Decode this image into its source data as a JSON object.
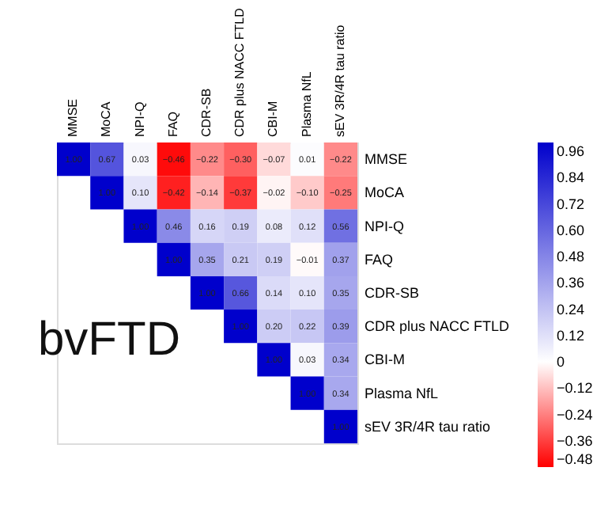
{
  "chart_data": {
    "type": "heatmap",
    "categories": [
      "MMSE",
      "MoCA",
      "NPI-Q",
      "FAQ",
      "CDR-SB",
      "CDR plus NACC FTLD",
      "CBI-M",
      "Plasma NfL",
      "sEV 3R/4R tau ratio"
    ],
    "y_categories": [
      "MMSE",
      "MoCA",
      "NPI-Q",
      "FAQ",
      "CDR-SB",
      "CDR plus NACC FTLD",
      "CBI-M",
      "Plasma NfL",
      "sEV 3R/4R tau ratio"
    ],
    "cells": [
      [
        1.0,
        0.67,
        0.03,
        -0.46,
        -0.22,
        -0.3,
        -0.07,
        0.01,
        -0.22
      ],
      [
        null,
        1.0,
        0.1,
        -0.42,
        -0.14,
        -0.37,
        -0.02,
        -0.1,
        -0.25
      ],
      [
        null,
        null,
        1.0,
        0.46,
        0.16,
        0.19,
        0.08,
        0.12,
        0.56
      ],
      [
        null,
        null,
        null,
        1.0,
        0.35,
        0.21,
        0.19,
        -0.01,
        0.37
      ],
      [
        null,
        null,
        null,
        null,
        1.0,
        0.66,
        0.14,
        0.1,
        0.35
      ],
      [
        null,
        null,
        null,
        null,
        null,
        1.0,
        0.2,
        0.22,
        0.39
      ],
      [
        null,
        null,
        null,
        null,
        null,
        null,
        1.0,
        0.03,
        0.34
      ],
      [
        null,
        null,
        null,
        null,
        null,
        null,
        null,
        1.0,
        0.34
      ],
      [
        null,
        null,
        null,
        null,
        null,
        null,
        null,
        null,
        1.0
      ]
    ],
    "cell_labels": [
      [
        "1.00",
        "0.67",
        "0.03",
        "−0.46",
        "−0.22",
        "−0.30",
        "−0.07",
        "0.01",
        "−0.22"
      ],
      [
        null,
        "1.00",
        "0.10",
        "−0.42",
        "−0.14",
        "−0.37",
        "−0.02",
        "−0.10",
        "−0.25"
      ],
      [
        null,
        null,
        "1.00",
        "0.46",
        "0.16",
        "0.19",
        "0.08",
        "0.12",
        "0.56"
      ],
      [
        null,
        null,
        null,
        "1.00",
        "0.35",
        "0.21",
        "0.19",
        "−0.01",
        "0.37"
      ],
      [
        null,
        null,
        null,
        null,
        "1.00",
        "0.66",
        "0.14",
        "0.10",
        "0.35"
      ],
      [
        null,
        null,
        null,
        null,
        null,
        "1.00",
        "0.20",
        "0.22",
        "0.39"
      ],
      [
        null,
        null,
        null,
        null,
        null,
        null,
        "1.00",
        "0.03",
        "0.34"
      ],
      [
        null,
        null,
        null,
        null,
        null,
        null,
        null,
        "1.00",
        "0.34"
      ],
      [
        null,
        null,
        null,
        null,
        null,
        null,
        null,
        null,
        "1.00"
      ]
    ],
    "clim": [
      -0.48,
      1.0
    ],
    "cticks": [
      0.96,
      0.84,
      0.72,
      {
        "value": 0.6,
        "label": "0.60"
      },
      0.48,
      0.36,
      0.24,
      0.12,
      0,
      -0.12,
      -0.24,
      -0.36,
      -0.48
    ],
    "colors": [
      "#ff0000",
      "#ffffff",
      "#0000cc"
    ],
    "annotations": [
      {
        "text": "bvFTD"
      }
    ]
  }
}
